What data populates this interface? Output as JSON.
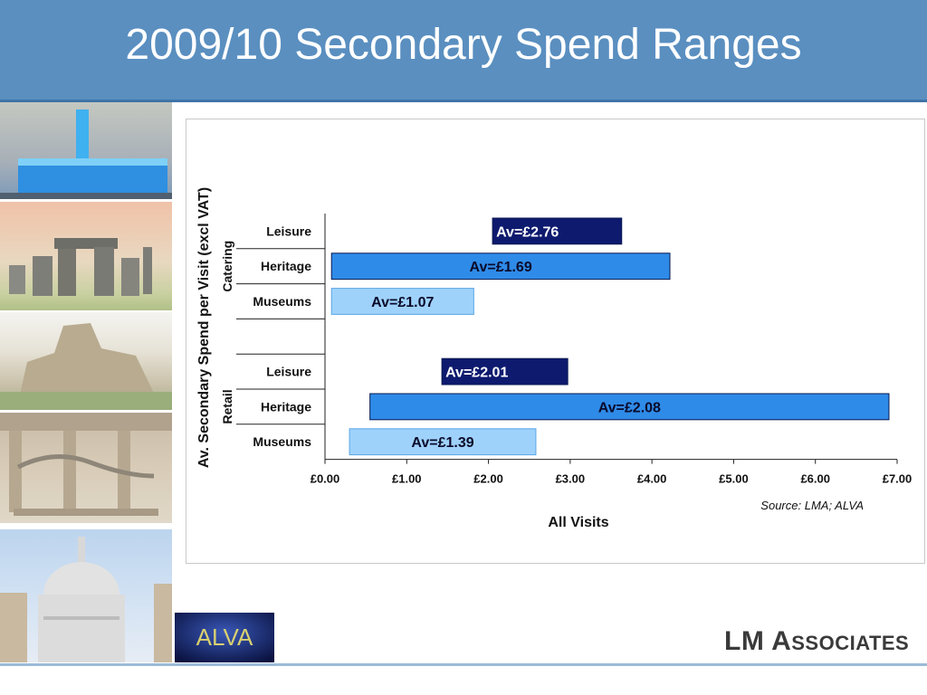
{
  "slide": {
    "title": "2009/10 Secondary Spend Ranges",
    "source": "Source: LMA; ALVA",
    "alva_logo_text": "ALVA",
    "lm_logo": {
      "big_l": "LM",
      "big_a": "A",
      "small": "SSOCIATES"
    }
  },
  "colors": {
    "header": "#5a8fc0",
    "leisure": "#0d1a6e",
    "heritage": "#2f8be8",
    "museums": "#9fd2fb"
  },
  "chart_data": {
    "type": "bar",
    "orientation": "horizontal-floating-range",
    "ylabel": "Av. Secondary Spend per Visit (excl VAT)",
    "xlabel": "All Visits",
    "xlim": [
      0,
      7
    ],
    "xticks": [
      "£0.00",
      "£1.00",
      "£2.00",
      "£3.00",
      "£4.00",
      "£5.00",
      "£6.00",
      "£7.00"
    ],
    "groups": [
      {
        "name": "Catering",
        "categories": [
          "Leisure",
          "Heritage",
          "Museums"
        ]
      },
      {
        "name": "Retail",
        "categories": [
          "Leisure",
          "Heritage",
          "Museums"
        ]
      }
    ],
    "bars": [
      {
        "group": "Catering",
        "category": "Leisure",
        "low": 2.05,
        "high": 3.63,
        "label": "Av=£2.76",
        "style": "leisure"
      },
      {
        "group": "Catering",
        "category": "Heritage",
        "low": 0.08,
        "high": 4.22,
        "label": "Av=£1.69",
        "style": "heritage"
      },
      {
        "group": "Catering",
        "category": "Museums",
        "low": 0.08,
        "high": 1.82,
        "label": "Av=£1.07",
        "style": "museums"
      },
      {
        "group": "Retail",
        "category": "Leisure",
        "low": 1.43,
        "high": 2.97,
        "label": "Av=£2.01",
        "style": "leisure"
      },
      {
        "group": "Retail",
        "category": "Heritage",
        "low": 0.55,
        "high": 6.9,
        "label": "Av=£2.08",
        "style": "heritage"
      },
      {
        "group": "Retail",
        "category": "Museums",
        "low": 0.3,
        "high": 2.58,
        "label": "Av=£1.39",
        "style": "museums"
      }
    ]
  }
}
